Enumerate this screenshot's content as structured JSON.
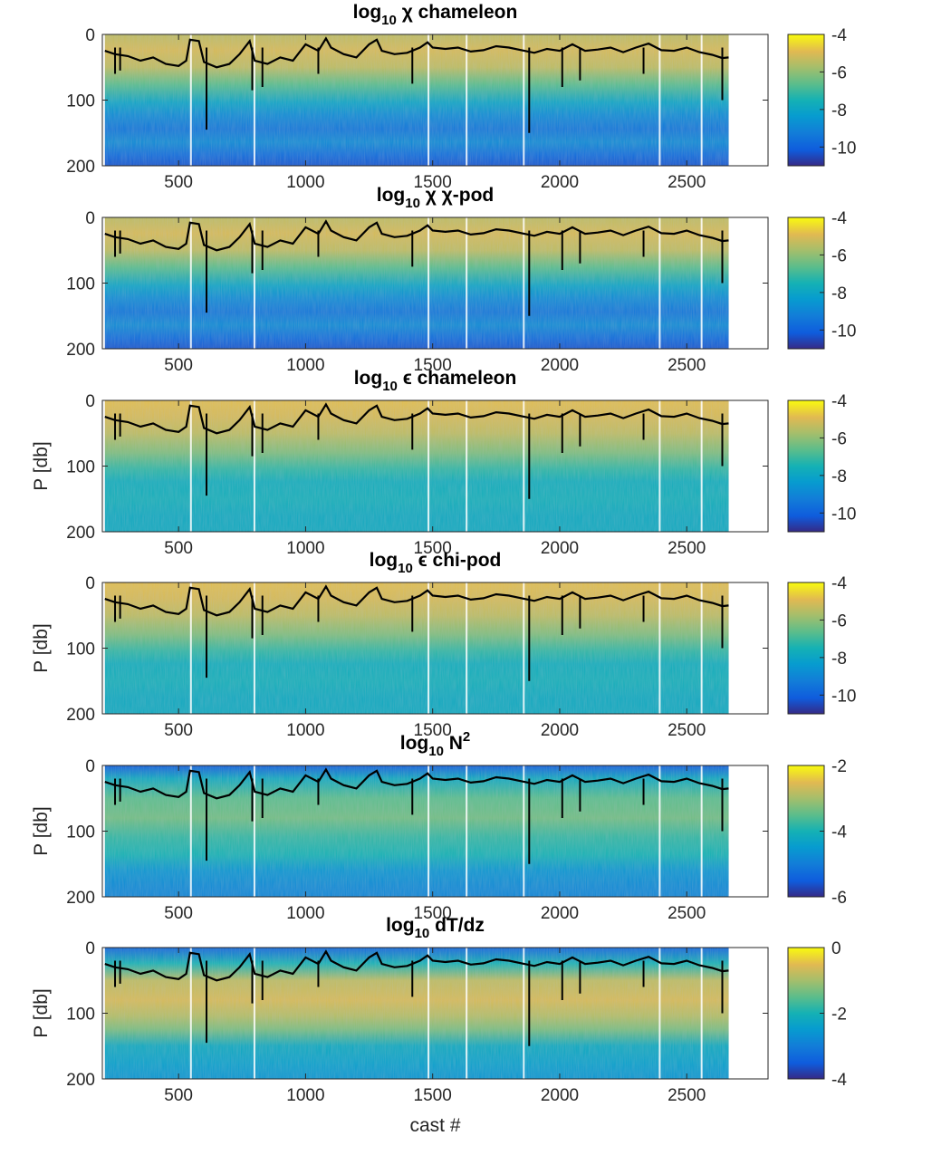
{
  "chart_data": [
    {
      "type": "heatmap",
      "title_parts": [
        "log",
        "10",
        " χ chameleon"
      ],
      "xlabel": "",
      "ylabel": "",
      "xlim": [
        200,
        2820
      ],
      "ylim": [
        200,
        0
      ],
      "xticks": [
        500,
        1000,
        1500,
        2000,
        2500
      ],
      "yticks": [
        0,
        100,
        200
      ],
      "colorbar": {
        "range": [
          -11,
          -4
        ],
        "ticks": [
          -4,
          -6,
          -8,
          -10
        ]
      },
      "colormap": "parula",
      "data_extent": {
        "cast_start": 210,
        "cast_end": 2665
      },
      "variant": "chi",
      "overlay": {
        "name": "mixed layer depth",
        "color": "#000000"
      }
    },
    {
      "type": "heatmap",
      "title_parts": [
        "log",
        "10",
        " χ χ-pod"
      ],
      "xlabel": "",
      "ylabel": "",
      "xlim": [
        200,
        2820
      ],
      "ylim": [
        200,
        0
      ],
      "xticks": [
        500,
        1000,
        1500,
        2000,
        2500
      ],
      "yticks": [
        0,
        100,
        200
      ],
      "colorbar": {
        "range": [
          -11,
          -4
        ],
        "ticks": [
          -4,
          -6,
          -8,
          -10
        ]
      },
      "colormap": "parula",
      "data_extent": {
        "cast_start": 210,
        "cast_end": 2665
      },
      "variant": "chi",
      "overlay": {
        "name": "mixed layer depth",
        "color": "#000000"
      }
    },
    {
      "type": "heatmap",
      "title_parts": [
        "log",
        "10",
        " ϵ chameleon"
      ],
      "xlabel": "",
      "ylabel": "P [db]",
      "xlim": [
        200,
        2820
      ],
      "ylim": [
        200,
        0
      ],
      "xticks": [
        500,
        1000,
        1500,
        2000,
        2500
      ],
      "yticks": [
        0,
        100,
        200
      ],
      "colorbar": {
        "range": [
          -11,
          -4
        ],
        "ticks": [
          -4,
          -6,
          -8,
          -10
        ]
      },
      "colormap": "parula",
      "data_extent": {
        "cast_start": 210,
        "cast_end": 2665
      },
      "variant": "eps",
      "overlay": {
        "name": "mixed layer depth",
        "color": "#000000"
      }
    },
    {
      "type": "heatmap",
      "title_parts": [
        "log",
        "10",
        " ϵ chi-pod"
      ],
      "xlabel": "",
      "ylabel": "P [db]",
      "xlim": [
        200,
        2820
      ],
      "ylim": [
        200,
        0
      ],
      "xticks": [
        500,
        1000,
        1500,
        2000,
        2500
      ],
      "yticks": [
        0,
        100,
        200
      ],
      "colorbar": {
        "range": [
          -11,
          -4
        ],
        "ticks": [
          -4,
          -6,
          -8,
          -10
        ]
      },
      "colormap": "parula",
      "data_extent": {
        "cast_start": 210,
        "cast_end": 2665
      },
      "variant": "eps",
      "overlay": {
        "name": "mixed layer depth",
        "color": "#000000"
      }
    },
    {
      "type": "heatmap",
      "title_parts": [
        "log",
        "10",
        " N",
        "2"
      ],
      "xlabel": "",
      "ylabel": "P [db]",
      "xlim": [
        200,
        2820
      ],
      "ylim": [
        200,
        0
      ],
      "xticks": [
        500,
        1000,
        1500,
        2000,
        2500
      ],
      "yticks": [
        0,
        100,
        200
      ],
      "colorbar": {
        "range": [
          -6,
          -2
        ],
        "ticks": [
          -2,
          -4,
          -6
        ]
      },
      "colormap": "parula",
      "data_extent": {
        "cast_start": 210,
        "cast_end": 2665
      },
      "variant": "n2",
      "overlay": {
        "name": "mixed layer depth",
        "color": "#000000"
      }
    },
    {
      "type": "heatmap",
      "title_parts": [
        "log",
        "10",
        " dT/dz"
      ],
      "xlabel": "cast #",
      "ylabel": "P [db]",
      "xlim": [
        200,
        2820
      ],
      "ylim": [
        200,
        0
      ],
      "xticks": [
        500,
        1000,
        1500,
        2000,
        2500
      ],
      "yticks": [
        0,
        100,
        200
      ],
      "colorbar": {
        "range": [
          -4,
          0
        ],
        "ticks": [
          0,
          -2,
          -4
        ]
      },
      "colormap": "parula",
      "data_extent": {
        "cast_start": 210,
        "cast_end": 2665
      },
      "variant": "dtdz",
      "overlay": {
        "name": "mixed layer depth",
        "color": "#000000"
      }
    }
  ],
  "overlay_line": {
    "x": [
      210,
      250,
      300,
      350,
      400,
      450,
      500,
      530,
      545,
      580,
      600,
      650,
      700,
      740,
      780,
      800,
      850,
      900,
      950,
      1000,
      1050,
      1080,
      1100,
      1150,
      1200,
      1250,
      1280,
      1300,
      1350,
      1400,
      1450,
      1480,
      1500,
      1550,
      1600,
      1650,
      1700,
      1750,
      1800,
      1850,
      1900,
      1950,
      2000,
      2050,
      2100,
      2150,
      2200,
      2250,
      2300,
      2350,
      2400,
      2450,
      2500,
      2550,
      2600,
      2640,
      2665
    ],
    "depth": [
      25,
      30,
      33,
      40,
      35,
      45,
      48,
      40,
      8,
      10,
      42,
      50,
      45,
      30,
      10,
      40,
      45,
      35,
      40,
      15,
      25,
      6,
      20,
      30,
      35,
      15,
      8,
      25,
      30,
      28,
      20,
      12,
      20,
      22,
      20,
      26,
      24,
      18,
      20,
      24,
      28,
      22,
      25,
      15,
      25,
      23,
      20,
      27,
      20,
      14,
      24,
      25,
      20,
      27,
      31,
      36,
      35
    ]
  },
  "overlay_spikes": [
    {
      "x": 250,
      "depth": 60
    },
    {
      "x": 270,
      "depth": 55
    },
    {
      "x": 610,
      "depth": 145
    },
    {
      "x": 790,
      "depth": 85
    },
    {
      "x": 830,
      "depth": 80
    },
    {
      "x": 1050,
      "depth": 60
    },
    {
      "x": 1420,
      "depth": 75
    },
    {
      "x": 1880,
      "depth": 150
    },
    {
      "x": 2010,
      "depth": 80
    },
    {
      "x": 2080,
      "depth": 70
    },
    {
      "x": 2330,
      "depth": 60
    },
    {
      "x": 2640,
      "depth": 100
    }
  ]
}
